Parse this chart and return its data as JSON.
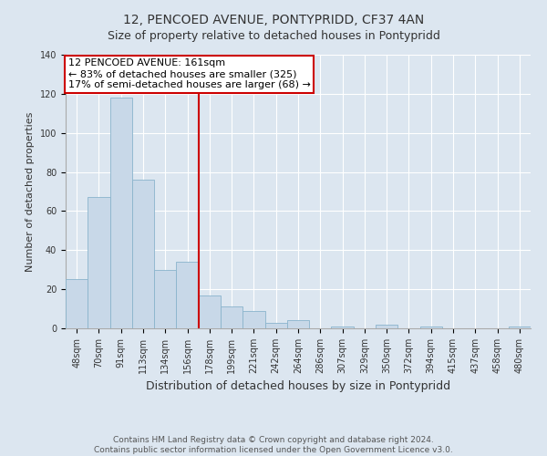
{
  "title": "12, PENCOED AVENUE, PONTYPRIDD, CF37 4AN",
  "subtitle": "Size of property relative to detached houses in Pontypridd",
  "xlabel": "Distribution of detached houses by size in Pontypridd",
  "ylabel": "Number of detached properties",
  "categories": [
    "48sqm",
    "70sqm",
    "91sqm",
    "113sqm",
    "134sqm",
    "156sqm",
    "178sqm",
    "199sqm",
    "221sqm",
    "242sqm",
    "264sqm",
    "286sqm",
    "307sqm",
    "329sqm",
    "350sqm",
    "372sqm",
    "394sqm",
    "415sqm",
    "437sqm",
    "458sqm",
    "480sqm"
  ],
  "values": [
    25,
    67,
    118,
    76,
    30,
    34,
    17,
    11,
    9,
    3,
    4,
    0,
    1,
    0,
    2,
    0,
    1,
    0,
    0,
    0,
    1
  ],
  "bar_color": "#c8d8e8",
  "bar_edge_color": "#8ab4cc",
  "highlight_index": 5,
  "highlight_color": "#cc0000",
  "annotation_title": "12 PENCOED AVENUE: 161sqm",
  "annotation_line1": "← 83% of detached houses are smaller (325)",
  "annotation_line2": "17% of semi-detached houses are larger (68) →",
  "annotation_box_facecolor": "#ffffff",
  "annotation_box_edgecolor": "#cc0000",
  "ylim_max": 140,
  "yticks": [
    0,
    20,
    40,
    60,
    80,
    100,
    120,
    140
  ],
  "fig_facecolor": "#dce6f0",
  "axes_facecolor": "#dce6f0",
  "grid_color": "#ffffff",
  "spine_color": "#aaaaaa",
  "title_fontsize": 10,
  "subtitle_fontsize": 9,
  "xlabel_fontsize": 9,
  "ylabel_fontsize": 8,
  "tick_fontsize": 7,
  "annotation_fontsize": 8,
  "footer_fontsize": 6.5,
  "footer_line1": "Contains HM Land Registry data © Crown copyright and database right 2024.",
  "footer_line2": "Contains public sector information licensed under the Open Government Licence v3.0."
}
